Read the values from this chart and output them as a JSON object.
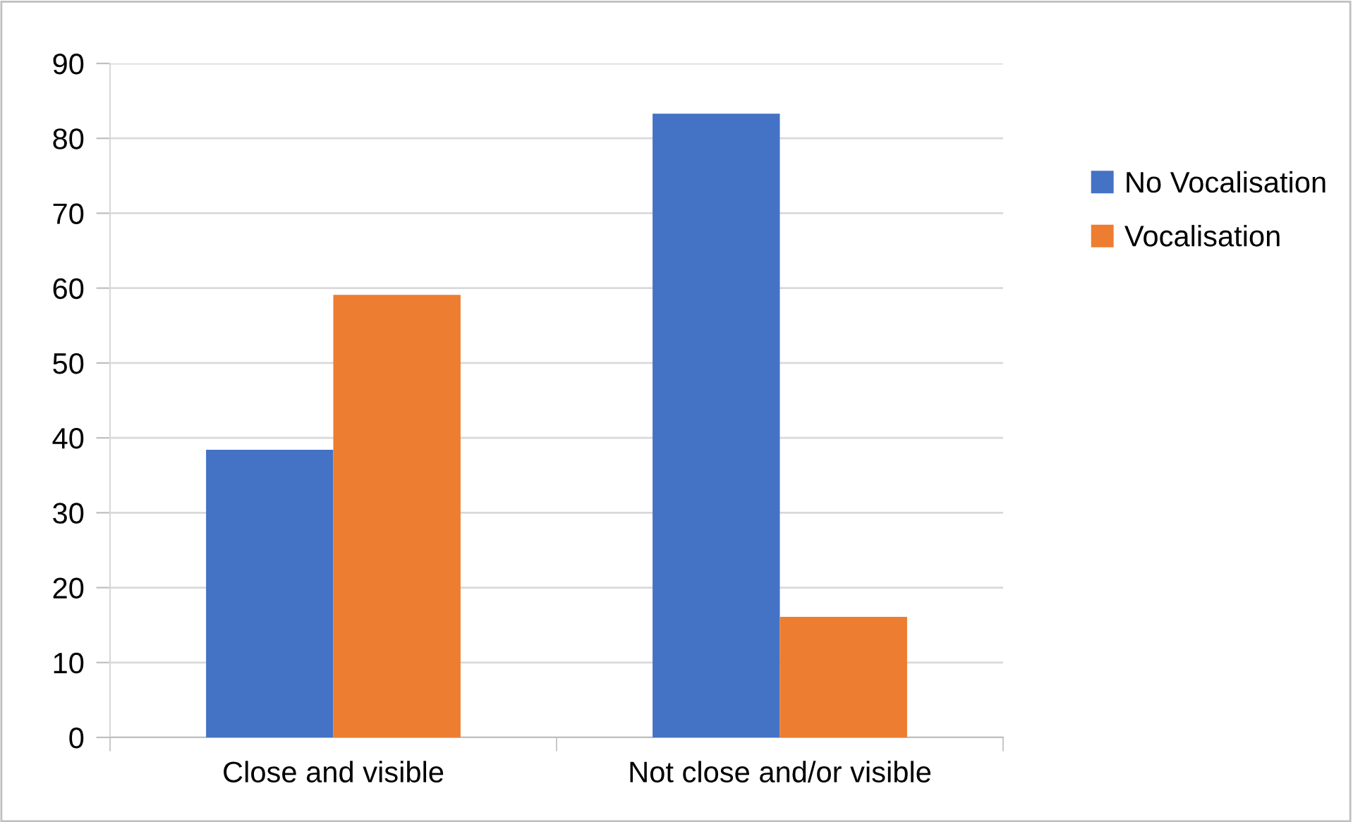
{
  "chart_data": {
    "type": "bar",
    "categories": [
      "Close and visible",
      "Not close and/or visible"
    ],
    "series": [
      {
        "name": "No Vocalisation",
        "color": "#4472c4",
        "values": [
          38.4,
          83.3
        ]
      },
      {
        "name": "Vocalisation",
        "color": "#ed7d31",
        "values": [
          59.1,
          16.1
        ]
      }
    ],
    "ylim": [
      0,
      90
    ],
    "yticks": [
      0,
      10,
      20,
      30,
      40,
      50,
      60,
      70,
      80,
      90
    ],
    "grid": "y",
    "legend": "right"
  }
}
